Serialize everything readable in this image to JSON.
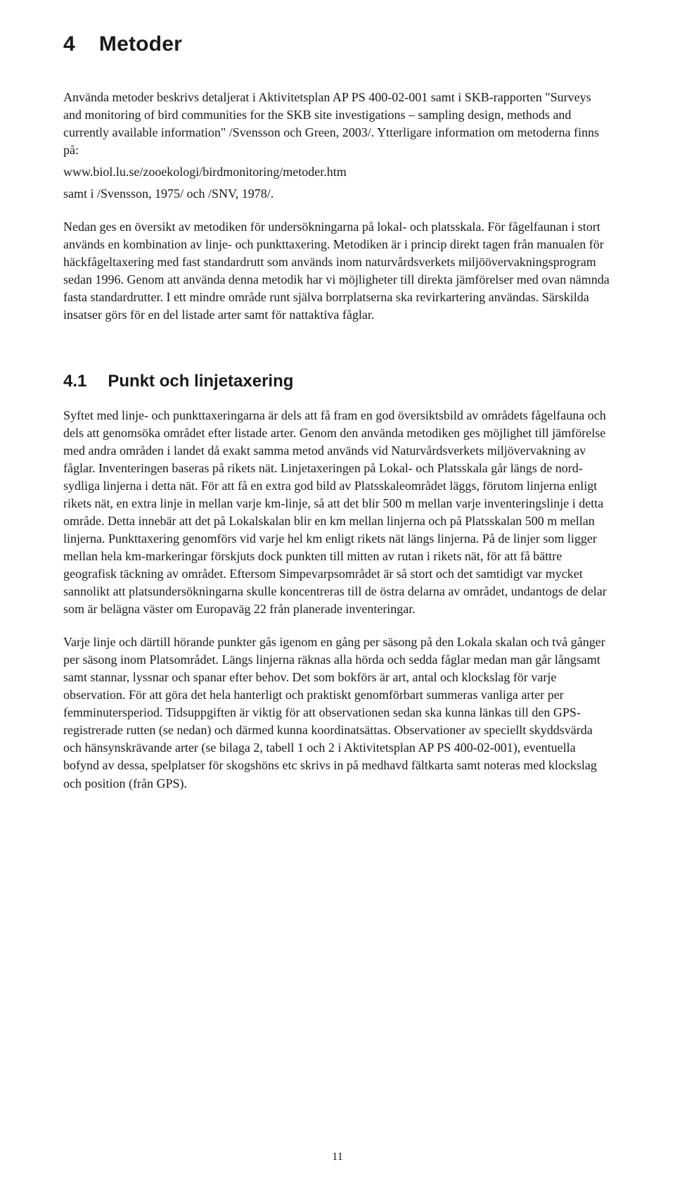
{
  "colors": {
    "text": "#1a1a1a",
    "background": "#ffffff"
  },
  "typography": {
    "body_font": "Georgia / Times-like serif",
    "body_size_pt": 13,
    "heading_font": "Arial / Helvetica",
    "h1_size_pt": 22,
    "h2_size_pt": 18,
    "line_height": 1.39
  },
  "h1": {
    "number": "4",
    "title": "Metoder"
  },
  "para1": "Använda metoder beskrivs detaljerat i Aktivitetsplan AP PS 400-02-001 samt i SKB-rapporten \"Surveys and monitoring of bird communities for the SKB site investigations – sampling design, methods and currently available information\" /Svensson och Green, 2003/. Ytterligare information om metoderna finns på:",
  "url": "www.biol.lu.se/zooekologi/birdmonitoring/metoder.htm",
  "para2": "samt i /Svensson, 1975/ och /SNV, 1978/.",
  "para3": "Nedan ges en översikt av metodiken för undersökningarna på lokal- och platsskala. För fågelfaunan i stort används en kombination av linje- och punkttaxering. Metodiken är i princip direkt tagen från manualen för häckfågeltaxering med fast standardrutt som används inom naturvårdsverkets miljöövervakningsprogram sedan 1996. Genom att använda denna metodik har vi möjligheter till direkta jämförelser med ovan nämnda fasta standardrutter. I ett mindre område runt själva borrplatserna ska revirkartering användas. Särskilda insatser görs för en del listade arter samt för nattaktiva fåglar.",
  "h2": {
    "number": "4.1",
    "title": "Punkt och linjetaxering"
  },
  "para4": "Syftet med linje- och punkttaxeringarna är dels att få fram en god översiktsbild av områdets fågelfauna och dels att genomsöka området efter listade arter. Genom den använda metodiken ges möjlighet till jämförelse med andra områden i landet då exakt samma metod används vid Naturvårdsverkets miljövervakning av fåglar. Inventeringen baseras på rikets nät. Linjetaxeringen på Lokal- och Platsskala går längs de nord-sydliga linjerna i detta nät. För att få en extra god bild av Platsskaleområdet läggs, förutom linjerna enligt rikets nät, en extra linje in mellan varje km-linje, så att det blir 500 m mellan varje inventeringslinje i detta område. Detta innebär att det på Lokalskalan blir en km mellan linjerna och på Platsskalan 500 m mellan linjerna. Punkttaxering genomförs vid varje hel km enligt rikets nät längs linjerna. På de linjer som ligger mellan hela km-markeringar förskjuts dock punkten till mitten av rutan i rikets nät, för att få bättre geografisk täckning av området. Eftersom Simpevarpsområdet är så stort och det samtidigt var mycket sannolikt att platsundersökningarna skulle koncentreras till de östra delarna av området, undantogs de delar som är belägna väster om Europaväg 22 från planerade inventeringar.",
  "para5": "Varje linje och därtill hörande punkter gås igenom en gång per säsong på den Lokala skalan och två gånger per säsong inom Platsområdet. Längs linjerna räknas alla hörda och sedda fåglar medan man går långsamt samt stannar, lyssnar och spanar efter behov. Det som bokförs är art, antal och klockslag för varje observation. För att göra det hela hanterligt och praktiskt genomförbart summeras vanliga arter per femminutersperiod. Tidsuppgiften är viktig för att observationen sedan ska kunna länkas till den GPS-registrerade rutten (se nedan) och därmed kunna koordinatsättas. Observationer av speciellt skyddsvärda och hänsynskrävande arter (se bilaga 2, tabell 1 och 2 i Aktivitetsplan AP PS 400-02-001), eventuella bofynd av dessa, spelplatser för skogshöns etc skrivs in på medhavd fältkarta samt noteras med klockslag och position (från GPS).",
  "footer": {
    "page_number": "11"
  }
}
